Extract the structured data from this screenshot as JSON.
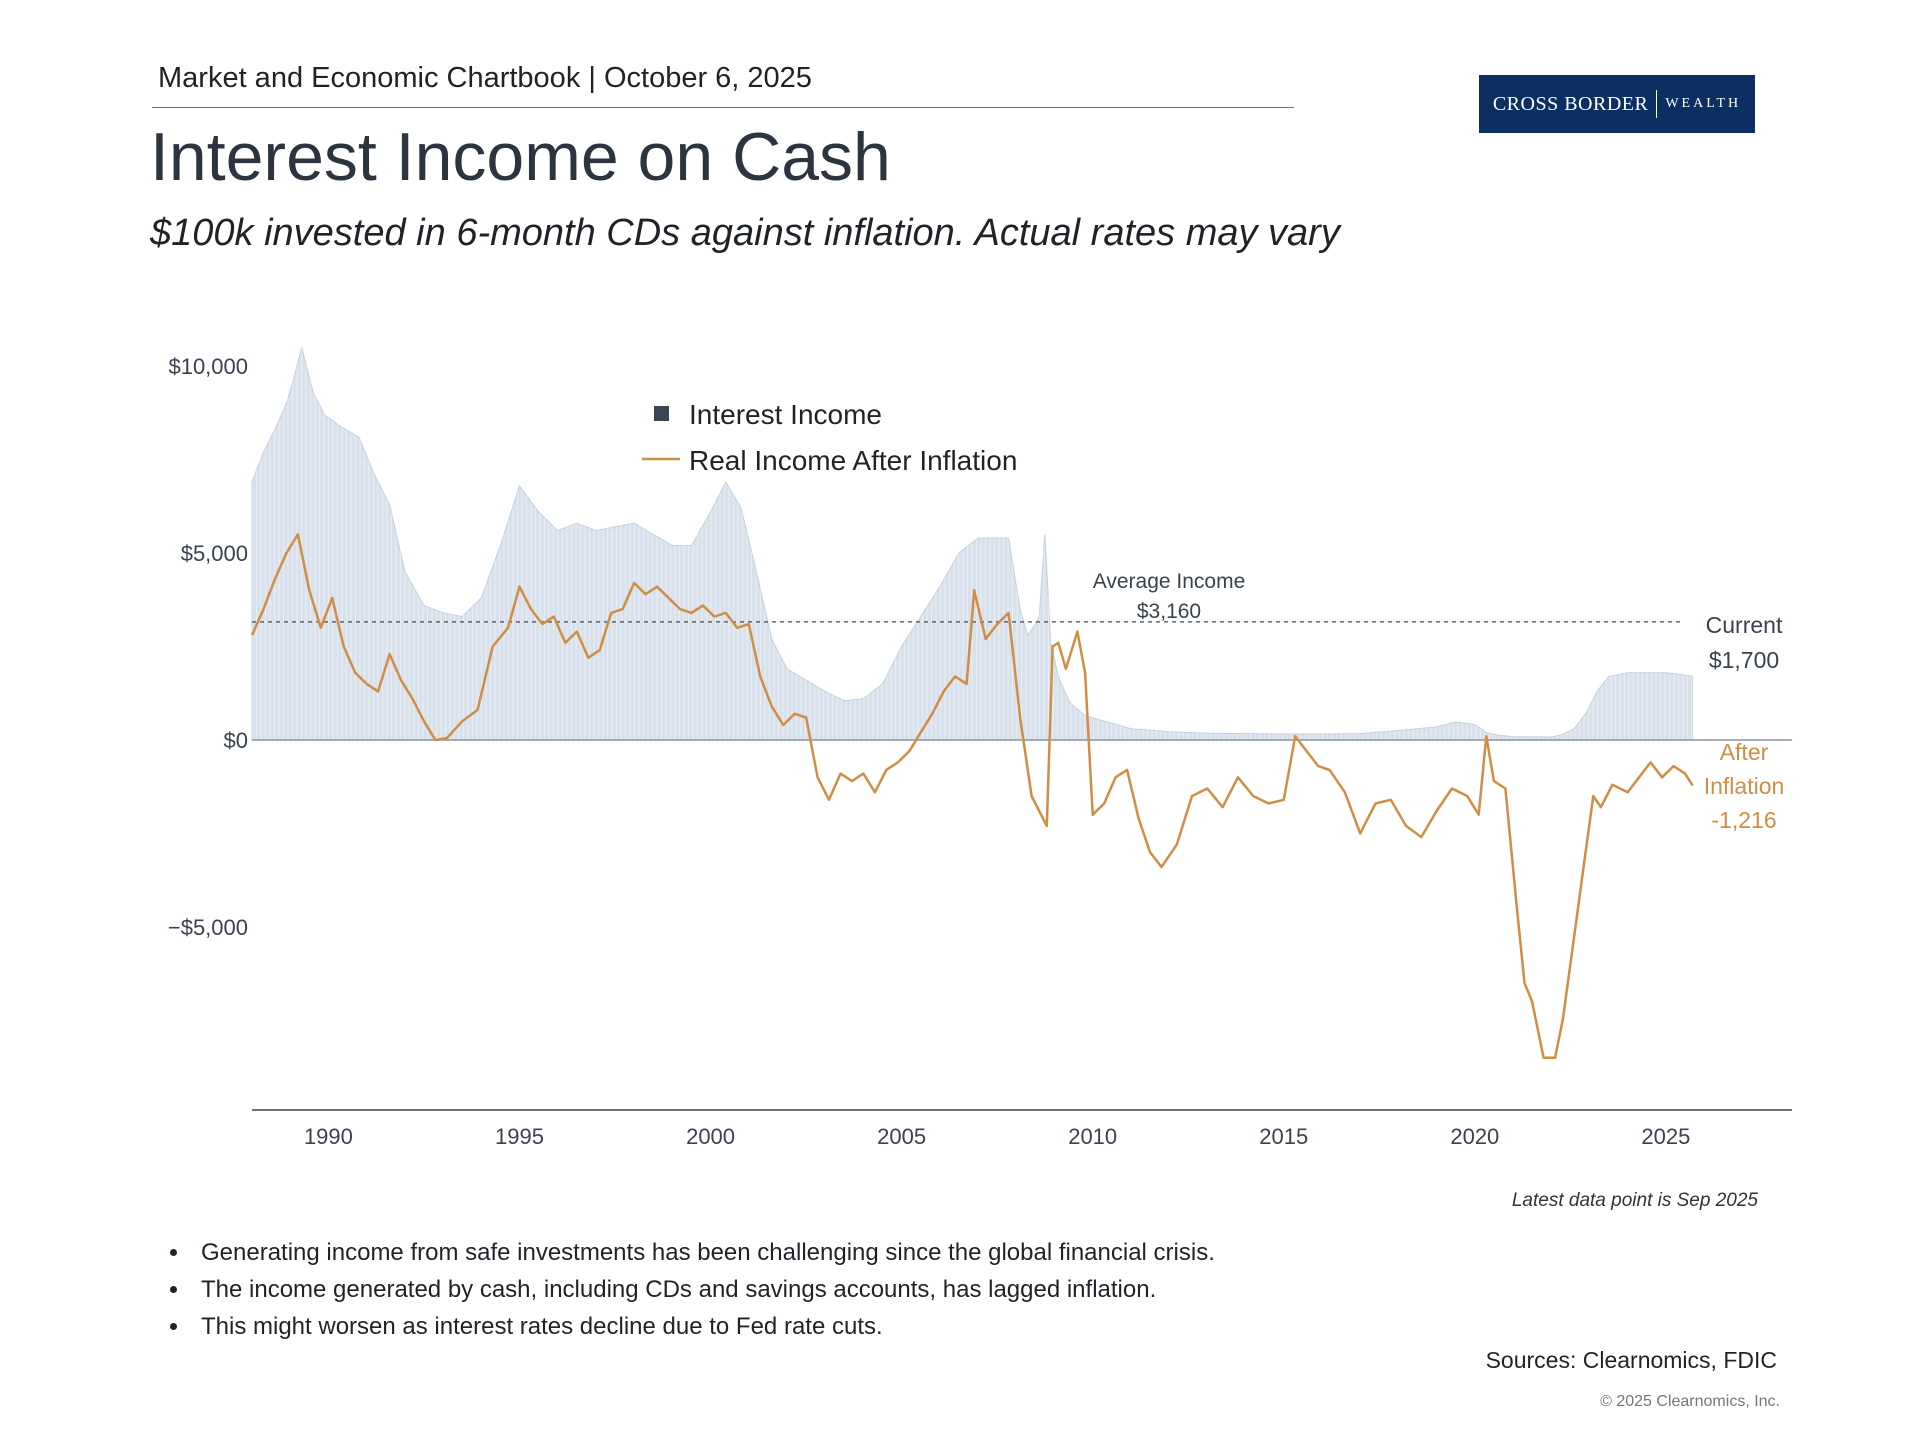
{
  "header": {
    "chartbook_line": "Market and Economic Chartbook | October 6, 2025",
    "brand_primary": "CROSS BORDER",
    "brand_secondary": "WEALTH",
    "title": "Interest Income on Cash",
    "subtitle": "$100k invested in 6-month CDs against inflation. Actual rates may vary"
  },
  "colors": {
    "income_fill": "#d9e1ec",
    "income_stroke": "#c2cede",
    "real_line": "#d08e45",
    "after_label": "#d08e45",
    "avg_line": "#666666",
    "brand_bg": "#0c2f63",
    "legend_square": "#3a4656"
  },
  "chart_data": {
    "type": "area",
    "title": "Interest Income on Cash",
    "xlabel": "",
    "ylabel": "",
    "xlim": [
      1988,
      2028.3
    ],
    "ylim": [
      -9900,
      10700
    ],
    "x_ticks": [
      1990,
      1995,
      2000,
      2005,
      2010,
      2015,
      2020,
      2025
    ],
    "y_ticks": [
      {
        "value": 10000,
        "label": "$10,000"
      },
      {
        "value": 5000,
        "label": "$5,000"
      },
      {
        "value": 0,
        "label": "$0"
      },
      {
        "value": -5000,
        "label": "−$5,000"
      }
    ],
    "legend": [
      {
        "name": "Interest Income",
        "marker": "square"
      },
      {
        "name": "Real Income After Inflation",
        "marker": "line"
      }
    ],
    "series": [
      {
        "name": "Interest Income",
        "type": "area",
        "x": [
          1988.0,
          1988.3,
          1988.6,
          1988.9,
          1989.1,
          1989.3,
          1989.6,
          1989.9,
          1990.3,
          1990.8,
          1991.2,
          1991.6,
          1992.0,
          1992.5,
          1993.0,
          1993.5,
          1994.0,
          1994.5,
          1995.0,
          1995.5,
          1996.0,
          1996.5,
          1997.0,
          1997.5,
          1998.0,
          1998.5,
          1999.0,
          1999.5,
          2000.0,
          2000.4,
          2000.8,
          2001.2,
          2001.6,
          2002.0,
          2002.5,
          2003.0,
          2003.5,
          2004.0,
          2004.5,
          2005.0,
          2005.5,
          2006.0,
          2006.5,
          2007.0,
          2007.5,
          2007.8,
          2008.1,
          2008.3,
          2008.5,
          2008.6,
          2008.75,
          2008.9,
          2009.1,
          2009.4,
          2009.8,
          2010.5,
          2011.0,
          2012.0,
          2013.0,
          2014.0,
          2015.0,
          2016.0,
          2017.0,
          2018.0,
          2019.0,
          2019.5,
          2020.0,
          2020.3,
          2020.6,
          2021.0,
          2022.0,
          2022.3,
          2022.6,
          2022.9,
          2023.2,
          2023.5,
          2024.0,
          2024.5,
          2025.0,
          2025.4,
          2025.7
        ],
        "values": [
          6900,
          7700,
          8300,
          9000,
          9700,
          10500,
          9300,
          8700,
          8400,
          8100,
          7100,
          6300,
          4500,
          3600,
          3400,
          3300,
          3800,
          5200,
          6800,
          6100,
          5600,
          5800,
          5600,
          5700,
          5800,
          5500,
          5200,
          5200,
          6100,
          6900,
          6200,
          4500,
          2700,
          1900,
          1600,
          1300,
          1050,
          1100,
          1500,
          2500,
          3300,
          4100,
          5000,
          5400,
          5400,
          5400,
          3500,
          2800,
          3100,
          3300,
          5500,
          2600,
          1700,
          1000,
          650,
          450,
          300,
          220,
          180,
          170,
          160,
          160,
          170,
          250,
          350,
          480,
          420,
          200,
          130,
          90,
          80,
          150,
          300,
          700,
          1300,
          1700,
          1800,
          1800,
          1800,
          1750,
          1700
        ]
      },
      {
        "name": "Real Income After Inflation",
        "type": "line",
        "x": [
          1988.0,
          1988.3,
          1988.6,
          1988.9,
          1989.2,
          1989.5,
          1989.8,
          1990.1,
          1990.4,
          1990.7,
          1991.0,
          1991.3,
          1991.6,
          1991.9,
          1992.2,
          1992.5,
          1992.8,
          1993.1,
          1993.5,
          1993.9,
          1994.3,
          1994.7,
          1995.0,
          1995.3,
          1995.6,
          1995.9,
          1996.2,
          1996.5,
          1996.8,
          1997.1,
          1997.4,
          1997.7,
          1998.0,
          1998.3,
          1998.6,
          1998.9,
          1999.2,
          1999.5,
          1999.8,
          2000.1,
          2000.4,
          2000.7,
          2001.0,
          2001.3,
          2001.6,
          2001.9,
          2002.2,
          2002.5,
          2002.8,
          2003.1,
          2003.4,
          2003.7,
          2004.0,
          2004.3,
          2004.6,
          2004.9,
          2005.2,
          2005.5,
          2005.8,
          2006.1,
          2006.4,
          2006.7,
          2006.9,
          2007.2,
          2007.5,
          2007.8,
          2008.1,
          2008.4,
          2008.6,
          2008.8,
          2008.95,
          2009.1,
          2009.3,
          2009.6,
          2009.8,
          2010.0,
          2010.3,
          2010.6,
          2010.9,
          2011.2,
          2011.5,
          2011.8,
          2012.2,
          2012.6,
          2013.0,
          2013.4,
          2013.8,
          2014.2,
          2014.6,
          2015.0,
          2015.3,
          2015.6,
          2015.9,
          2016.2,
          2016.6,
          2017.0,
          2017.4,
          2017.8,
          2018.2,
          2018.6,
          2019.0,
          2019.4,
          2019.8,
          2020.1,
          2020.3,
          2020.5,
          2020.8,
          2021.1,
          2021.3,
          2021.5,
          2021.8,
          2022.1,
          2022.3,
          2022.5,
          2022.7,
          2022.9,
          2023.1,
          2023.3,
          2023.6,
          2024.0,
          2024.3,
          2024.6,
          2024.9,
          2025.2,
          2025.5,
          2025.7
        ],
        "values": [
          2800,
          3500,
          4300,
          5000,
          5500,
          4000,
          3000,
          3800,
          2500,
          1800,
          1500,
          1300,
          2300,
          1600,
          1100,
          500,
          0,
          50,
          500,
          800,
          2500,
          3000,
          4100,
          3500,
          3100,
          3300,
          2600,
          2900,
          2200,
          2400,
          3400,
          3500,
          4200,
          3900,
          4100,
          3800,
          3500,
          3400,
          3600,
          3300,
          3400,
          3000,
          3100,
          1700,
          900,
          400,
          700,
          600,
          -1000,
          -1600,
          -900,
          -1100,
          -900,
          -1400,
          -800,
          -600,
          -300,
          200,
          700,
          1300,
          1700,
          1500,
          4000,
          2700,
          3100,
          3400,
          600,
          -1500,
          -1900,
          -2300,
          2500,
          2600,
          1900,
          2900,
          1800,
          -2000,
          -1700,
          -1000,
          -800,
          -2100,
          -3000,
          -3400,
          -2800,
          -1500,
          -1300,
          -1800,
          -1000,
          -1500,
          -1700,
          -1600,
          100,
          -300,
          -700,
          -800,
          -1400,
          -2500,
          -1700,
          -1600,
          -2300,
          -2600,
          -1900,
          -1300,
          -1500,
          -2000,
          100,
          -1100,
          -1300,
          -4500,
          -6500,
          -7000,
          -8500,
          -8500,
          -7500,
          -6000,
          -4500,
          -3000,
          -1500,
          -1800,
          -1200,
          -1400,
          -1000,
          -600,
          -1000,
          -700,
          -900,
          -1216
        ]
      }
    ],
    "annotations": {
      "average_value": 3160,
      "average_label_line1": "Average Income",
      "average_label_line2": "$3,160",
      "current_label_line1": "Current",
      "current_label_line2": "$1,700",
      "after_label_line1": "After",
      "after_label_line2": "Inflation",
      "after_label_line3": "-1,216"
    }
  },
  "footer": {
    "latest_note": "Latest data point is Sep 2025",
    "bullets": [
      "Generating income from safe investments has been challenging since the global financial crisis.",
      "The income generated by cash, including CDs and savings accounts, has lagged inflation.",
      "This might worsen as interest rates decline due to Fed rate cuts."
    ],
    "sources": "Sources: Clearnomics, FDIC",
    "copyright": "© 2025 Clearnomics, Inc."
  }
}
